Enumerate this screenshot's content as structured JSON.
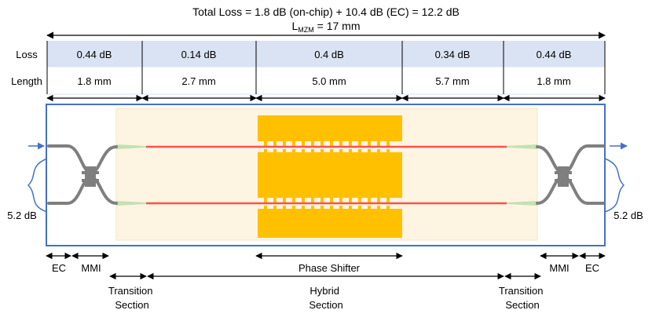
{
  "header": {
    "total_loss": "Total Loss = 1.8 dB (on-chip) + 10.4 dB (EC) = 12.2 dB",
    "length_prefix": "L",
    "length_sub": "MZM",
    "length_value": " = 17 mm"
  },
  "table": {
    "row_labels": [
      "Loss",
      "Length"
    ],
    "loss": [
      "0.44 dB",
      "0.14 dB",
      "0.4 dB",
      "0.34 dB",
      "0.44 dB"
    ],
    "length": [
      "1.8 mm",
      "2.7 mm",
      "5.0 mm",
      "5.7 mm",
      "1.8 mm"
    ]
  },
  "coupling": {
    "left_loss": "5.2 dB",
    "right_loss": "5.2 dB"
  },
  "sections": {
    "ec_left": "EC",
    "mmi_left": "MMI",
    "phase_shifter": "Phase Shifter",
    "mmi_right": "MMI",
    "ec_right": "EC",
    "transition_left": [
      "Transition",
      "Section"
    ],
    "hybrid": [
      "Hybrid",
      "Section"
    ],
    "transition_right": [
      "Transition",
      "Section"
    ]
  },
  "colors": {
    "table_loss_row": "#dae3f3",
    "chip_border": "#4472c4",
    "hybrid_region": "#fdf5e1",
    "electrode": "#ffc000",
    "waveguide_grey": "#7f7f7f",
    "waveguide_red": "#ff5050",
    "taper_green": "#c5e0b4",
    "arrow_blue": "#4472c4"
  }
}
